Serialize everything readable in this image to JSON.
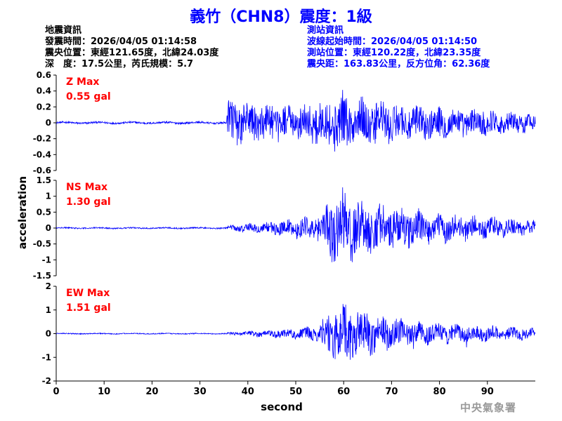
{
  "title": "義竹（CHN8）震度：1級",
  "quake_info": {
    "heading": "地震資訊",
    "time": "發震時間：2026/04/05 01:14:58",
    "epicenter": "震央位置：東經121.65度，北緯24.03度",
    "depth_mag": "深　度：17.5公里，芮氏規模：5.7"
  },
  "station_info": {
    "heading": "測站資訊",
    "wave_start": "波線起始時間：2026/04/05 01:14:50",
    "location": "測站位置：東經120.22度，北緯23.35度",
    "distance": "震央距：163.83公里，反方位角：62.36度"
  },
  "watermark": "中央氣象署",
  "colors": {
    "trace": "#0000ff",
    "max_label": "#ff0000",
    "title": "#0000ff",
    "station_text": "#0000ff"
  },
  "chart_data": {
    "type": "line",
    "xlabel": "second",
    "ylabel": "acceleration",
    "xlim": [
      0,
      100
    ],
    "x_ticks": [
      "0",
      "10",
      "20",
      "30",
      "40",
      "50",
      "60",
      "70",
      "80",
      "90"
    ],
    "grid": false,
    "panels": [
      {
        "name": "Z",
        "label": "Z Max",
        "max_text": "0.55 gal",
        "ylim": [
          -0.6,
          0.6
        ],
        "y_ticks": [
          "0.6",
          "0.4",
          "0.2",
          "0",
          "-0.2",
          "-0.4",
          "-0.6"
        ],
        "y_tick_values": [
          0.6,
          0.4,
          0.2,
          0,
          -0.2,
          -0.4,
          -0.6
        ],
        "pre_noise": 0.012,
        "p_arrival": 35.5,
        "envelope_x": [
          0,
          35.5,
          36,
          40,
          45,
          50,
          55,
          57,
          60,
          62,
          65,
          70,
          75,
          80,
          85,
          90,
          95,
          100
        ],
        "envelope_y": [
          0.012,
          0.012,
          0.3,
          0.26,
          0.24,
          0.22,
          0.28,
          0.34,
          0.38,
          0.34,
          0.3,
          0.26,
          0.22,
          0.2,
          0.18,
          0.16,
          0.14,
          0.13
        ]
      },
      {
        "name": "NS",
        "label": "NS Max",
        "max_text": "1.30 gal",
        "ylim": [
          -1.5,
          1.5
        ],
        "y_ticks": [
          "1.5",
          "1",
          "0.5",
          "0",
          "-0.5",
          "-1",
          "-1.5"
        ],
        "y_tick_values": [
          1.5,
          1,
          0.5,
          0,
          -0.5,
          -1,
          -1.5
        ],
        "pre_noise": 0.02,
        "p_arrival": 35.5,
        "envelope_x": [
          0,
          35.5,
          36,
          40,
          45,
          50,
          55,
          56,
          58,
          60,
          62,
          65,
          70,
          75,
          80,
          85,
          90,
          95,
          100
        ],
        "envelope_y": [
          0.02,
          0.02,
          0.08,
          0.14,
          0.2,
          0.3,
          0.45,
          0.8,
          1.1,
          1.2,
          1.0,
          0.85,
          0.7,
          0.55,
          0.45,
          0.4,
          0.35,
          0.3,
          0.27
        ]
      },
      {
        "name": "EW",
        "label": "EW Max",
        "max_text": "1.51 gal",
        "ylim": [
          -2,
          2
        ],
        "y_ticks": [
          "2",
          "1",
          "0",
          "-1",
          "-2"
        ],
        "y_tick_values": [
          2,
          1,
          0,
          -1,
          -2
        ],
        "pre_noise": 0.02,
        "p_arrival": 35.5,
        "envelope_x": [
          0,
          35.5,
          36,
          40,
          45,
          50,
          55,
          56,
          58,
          60,
          62,
          65,
          70,
          75,
          80,
          85,
          90,
          95,
          100
        ],
        "envelope_y": [
          0.02,
          0.02,
          0.06,
          0.1,
          0.16,
          0.22,
          0.35,
          0.8,
          1.2,
          1.35,
          1.1,
          0.9,
          0.7,
          0.5,
          0.42,
          0.38,
          0.33,
          0.28,
          0.25
        ]
      }
    ]
  }
}
